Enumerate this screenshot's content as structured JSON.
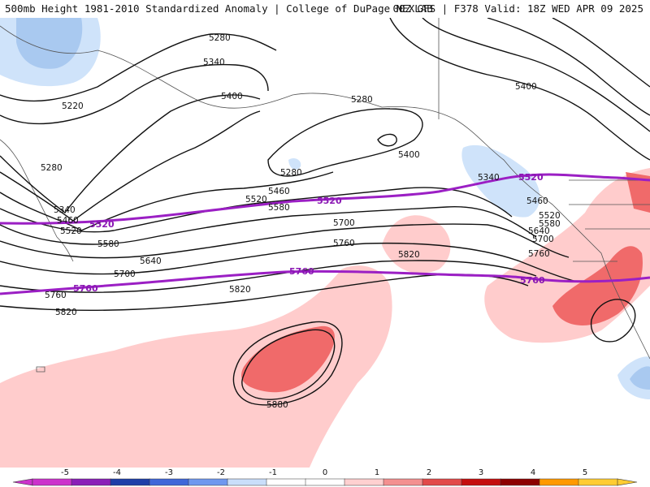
{
  "header": {
    "title_left": "500mb Height 1981-2010 Standardized Anomaly | College of DuPage NEXLAB",
    "title_right": "00Z GFS | F378 Valid: 18Z WED APR 09 2025"
  },
  "colors": {
    "contour": "#111111",
    "purple_contour": "#9b1fc4",
    "coast": "#555555",
    "anom_pos_1": "#ffcccc",
    "anom_pos_2": "#f06a6a",
    "anom_neg_1": "#cfe3fa",
    "anom_neg_2": "#a9c9f0"
  },
  "contour_labels": [
    "5220",
    "5280",
    "5340",
    "5400",
    "5460",
    "5520",
    "5580",
    "5640",
    "5700",
    "5760",
    "5820",
    "5880"
  ],
  "purple_labels": [
    "5520",
    "5760"
  ],
  "colorbar": {
    "ticks": [
      "-5",
      "-4",
      "-3",
      "-2",
      "-1",
      "0",
      "1",
      "2",
      "3",
      "4",
      "5"
    ],
    "colors": [
      "#cc33cc",
      "#8a1fb8",
      "#1e3ea8",
      "#3f67d9",
      "#6f98ef",
      "#c9defa",
      "#ffffff",
      "#ffffff",
      "#ffd0d0",
      "#f39090",
      "#e24a4a",
      "#c40e0e",
      "#8c0000",
      "#ff9900",
      "#ffcc33"
    ]
  }
}
